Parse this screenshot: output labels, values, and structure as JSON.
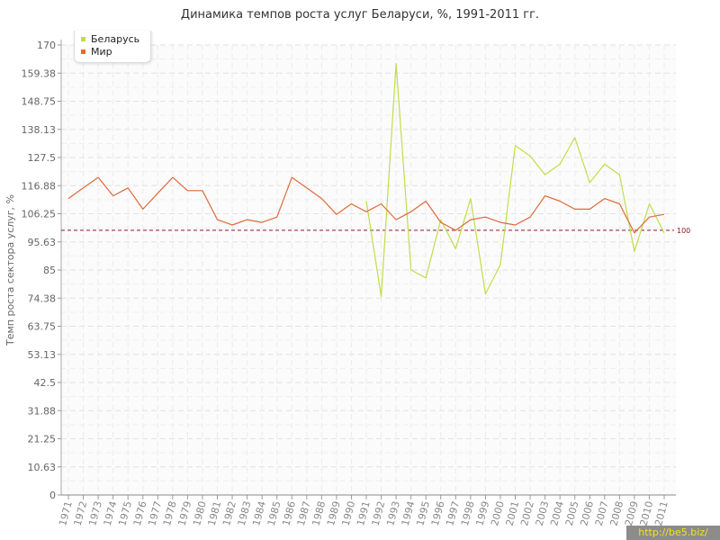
{
  "chart_data": {
    "type": "line",
    "title": "Динамика темпов роста услуг Беларуси, %, 1991-2011 гг.",
    "ylabel": "Темп роста сектора услуг, %",
    "xlabel": "",
    "ylim": [
      0,
      170
    ],
    "yticks": [
      "0",
      "10.63",
      "21.25",
      "31.88",
      "42.5",
      "53.13",
      "63.75",
      "74.38",
      "85",
      "95.63",
      "106.25",
      "116.88",
      "127.5",
      "138.13",
      "148.75",
      "159.38",
      "170"
    ],
    "x": [
      "1971",
      "1972",
      "1973",
      "1974",
      "1975",
      "1976",
      "1977",
      "1978",
      "1979",
      "1980",
      "1981",
      "1982",
      "1983",
      "1984",
      "1985",
      "1986",
      "1987",
      "1988",
      "1989",
      "1990",
      "1991",
      "1992",
      "1993",
      "1994",
      "1995",
      "1996",
      "1997",
      "1998",
      "1999",
      "2000",
      "2001",
      "2002",
      "2003",
      "2004",
      "2005",
      "2006",
      "2007",
      "2008",
      "2009",
      "2010",
      "2011"
    ],
    "grid": true,
    "legend_position": "top-left",
    "reference_line": {
      "value": 100,
      "label": "100",
      "color": "#8b1a2b"
    },
    "series": [
      {
        "name": "Беларусь",
        "color": "#c2dd4b",
        "values": [
          null,
          null,
          null,
          null,
          null,
          null,
          null,
          null,
          null,
          null,
          null,
          null,
          null,
          null,
          null,
          null,
          null,
          null,
          null,
          null,
          111,
          75,
          163,
          85,
          82,
          104,
          93,
          112,
          76,
          87,
          132,
          128,
          121,
          125,
          135,
          118,
          125,
          121,
          92,
          110,
          99
        ]
      },
      {
        "name": "Мир",
        "color": "#e0693a",
        "values": [
          112,
          116,
          120,
          113,
          116,
          108,
          114,
          120,
          115,
          115,
          104,
          102,
          104,
          103,
          105,
          120,
          116,
          112,
          106,
          110,
          107,
          110,
          104,
          107,
          111,
          103,
          100,
          104,
          105,
          103,
          102,
          105,
          113,
          111,
          108,
          108,
          112,
          110,
          99,
          105,
          106
        ]
      }
    ]
  },
  "watermark": "http://be5.biz/"
}
